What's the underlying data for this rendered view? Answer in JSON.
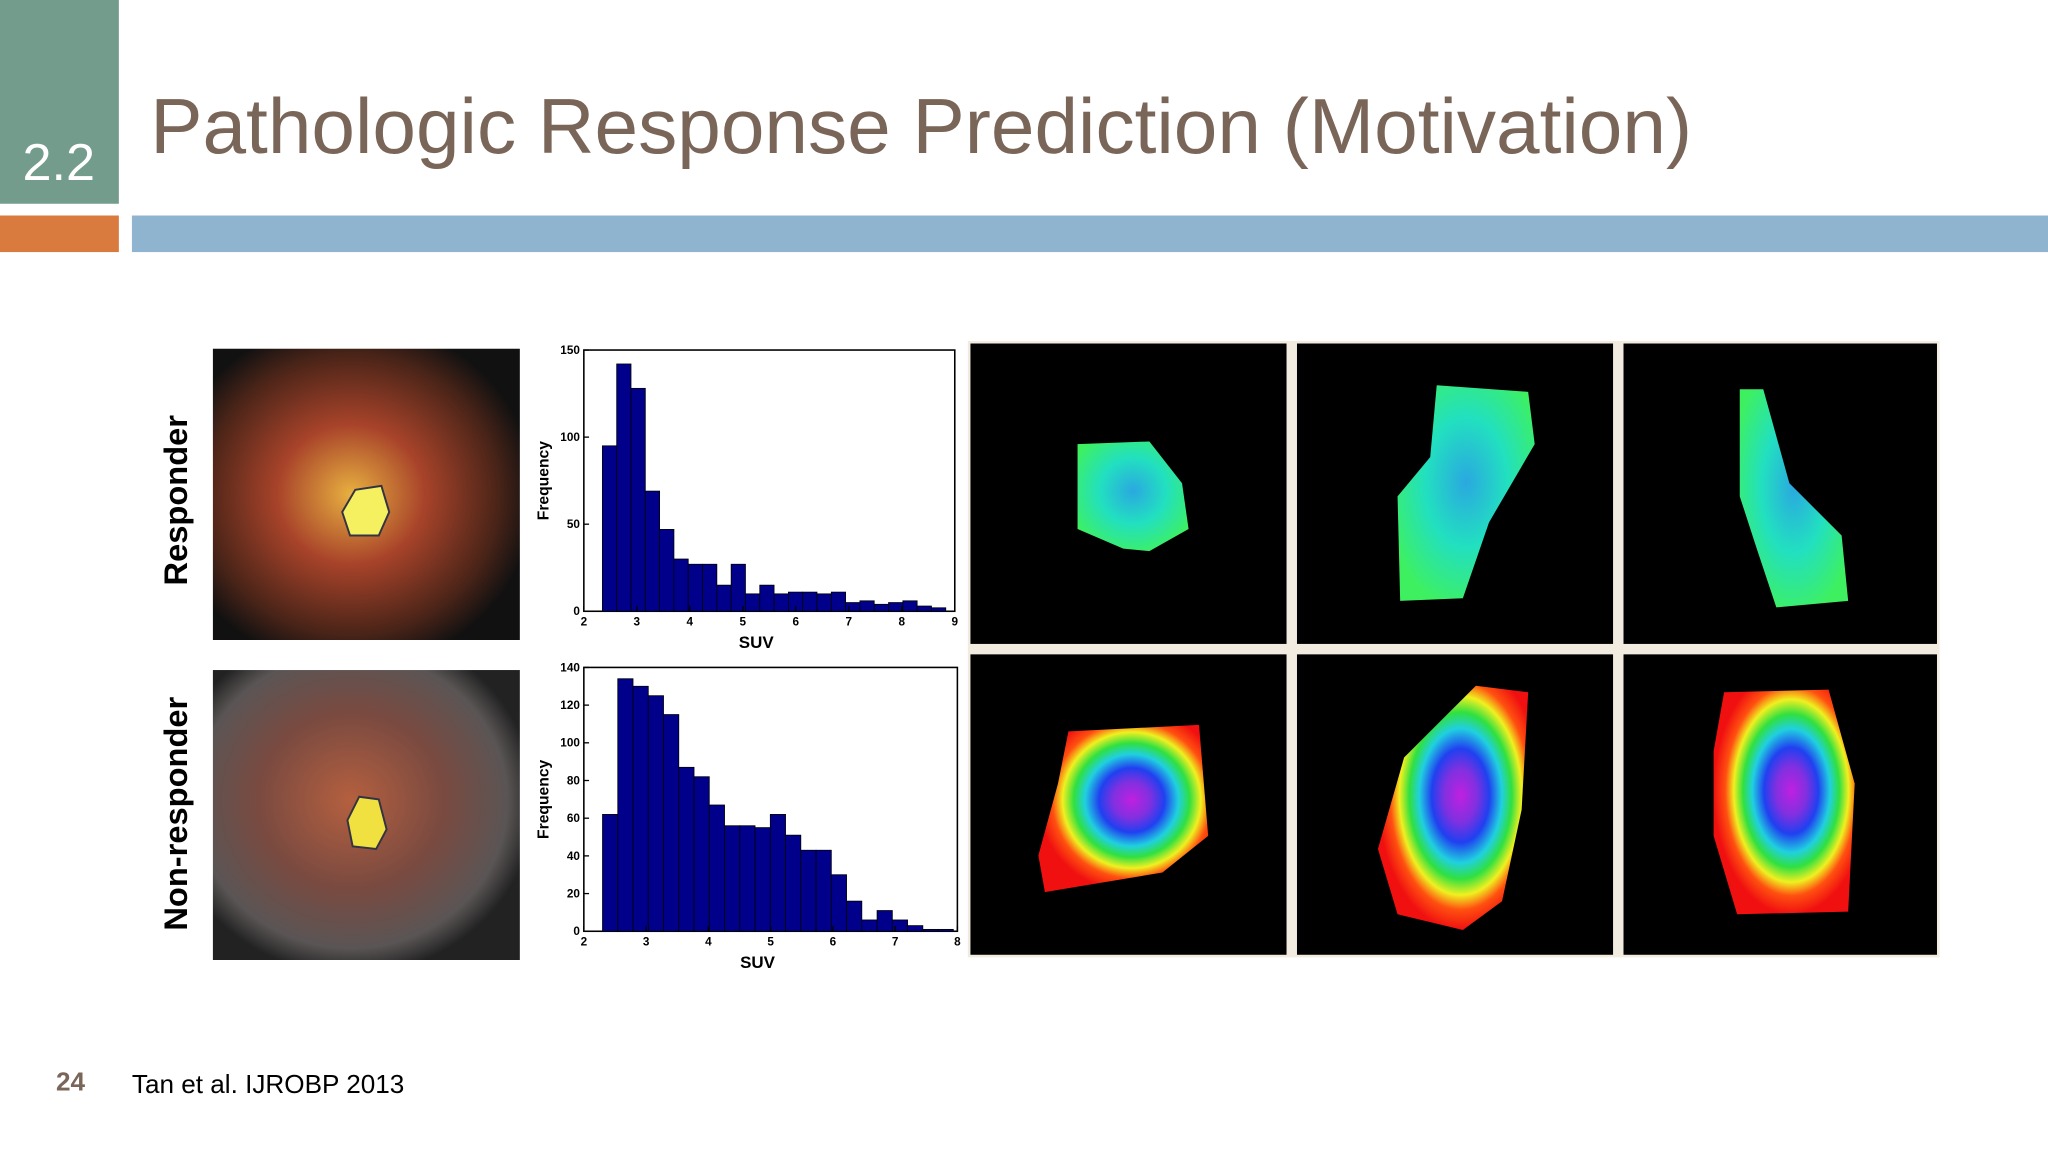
{
  "header": {
    "section": "2.2",
    "title": "Pathologic Response Prediction (Motivation)"
  },
  "rows": [
    {
      "label": "Responder"
    },
    {
      "label": "Non-responder"
    }
  ],
  "chart_data": [
    {
      "type": "histogram",
      "xlabel": "SUV",
      "ylabel": "Frequency",
      "color": "#00008b",
      "bins": [
        2.35,
        2.62,
        2.89,
        3.16,
        3.43,
        3.7,
        3.97,
        4.24,
        4.51,
        4.78,
        5.05,
        5.32,
        5.59,
        5.86,
        6.13,
        6.4,
        6.67,
        6.94,
        7.21,
        7.48,
        7.75,
        8.02,
        8.29,
        8.56,
        8.83
      ],
      "values": [
        95,
        142,
        128,
        69,
        47,
        30,
        27,
        27,
        15,
        27,
        10,
        15,
        10,
        11,
        11,
        10,
        11,
        5,
        6,
        4,
        5,
        6,
        3,
        2
      ],
      "xlim": [
        2,
        9
      ],
      "ylim": [
        0,
        150
      ],
      "xticks": [
        2,
        3,
        4,
        5,
        6,
        7,
        8,
        9
      ],
      "yticks": [
        0,
        50,
        100,
        150
      ]
    },
    {
      "type": "histogram",
      "xlabel": "SUV",
      "ylabel": "Frequency",
      "color": "#00008b",
      "bins": [
        2.3,
        2.545,
        2.79,
        3.035,
        3.28,
        3.525,
        3.77,
        4.015,
        4.26,
        4.505,
        4.75,
        4.995,
        5.24,
        5.485,
        5.73,
        5.975,
        6.22,
        6.465,
        6.71,
        6.955,
        7.2,
        7.445,
        7.69,
        7.935
      ],
      "values": [
        62,
        134,
        130,
        125,
        115,
        87,
        82,
        67,
        56,
        56,
        55,
        62,
        51,
        43,
        43,
        30,
        16,
        6,
        11,
        6,
        3,
        1,
        1
      ],
      "xlim": [
        2,
        8
      ],
      "ylim": [
        0,
        140
      ],
      "xticks": [
        2,
        3,
        4,
        5,
        6,
        7,
        8
      ],
      "yticks": [
        0,
        20,
        40,
        60,
        80,
        100,
        120,
        140
      ]
    }
  ],
  "footer": {
    "page": "24",
    "citation": "Tan et al. IJROBP 2013"
  }
}
